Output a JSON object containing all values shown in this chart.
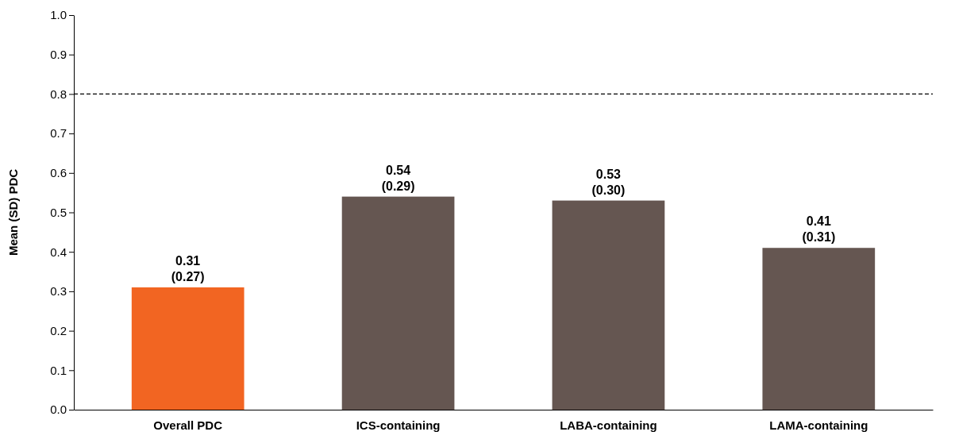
{
  "chart_data": {
    "type": "bar",
    "ylabel": "Mean (SD) PDC",
    "categories": [
      "Overall PDC",
      "ICS-containing",
      "LABA-containing",
      "LAMA-containing"
    ],
    "values": [
      0.31,
      0.54,
      0.53,
      0.41
    ],
    "colors": [
      "#f26522",
      "#655651",
      "#655651",
      "#655651"
    ],
    "value_labels": [
      "0.31\n(0.27)",
      "0.54\n(0.29)",
      "0.53\n(0.30)",
      "0.41\n(0.31)"
    ],
    "ylim": [
      0,
      1
    ],
    "yticks": [
      {
        "value": 0,
        "label": "0.0"
      },
      0.1,
      0.2,
      0.3,
      0.4,
      0.5,
      0.6,
      0.7,
      0.8,
      0.9,
      {
        "value": 1,
        "label": "1.0"
      }
    ],
    "ref_lines": [
      {
        "axis": "y",
        "value": 0.8,
        "line_style": "dashed",
        "color": "#000000"
      }
    ],
    "grid": false
  }
}
